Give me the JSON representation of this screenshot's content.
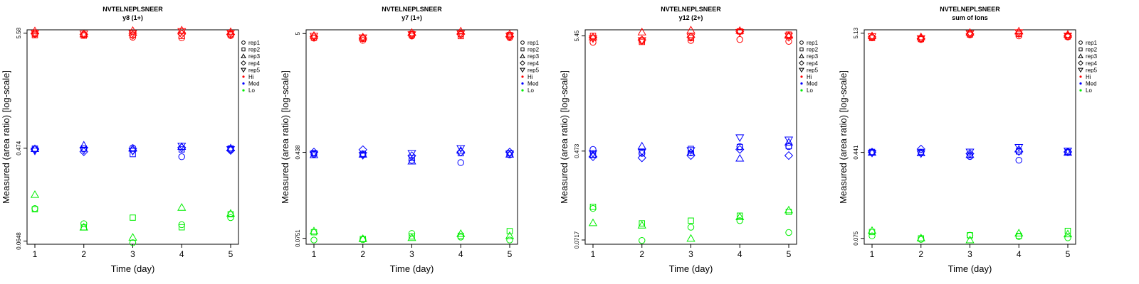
{
  "chart_data": [
    {
      "type": "scatter",
      "title": "NVTELNEPLSNEER",
      "subtitle": "y8 (1+)",
      "xlabel": "Time (day)",
      "ylabel": "Measured (area ratio) [log-scale]",
      "log_y": true,
      "x_ticks": [
        "1",
        "2",
        "3",
        "4",
        "5"
      ],
      "y_ticks": [
        {
          "value": 0.0648,
          "label": "0.0648"
        },
        {
          "value": 0.474,
          "label": "0.474"
        },
        {
          "value": 5.58,
          "label": "5.58"
        }
      ],
      "ylim": [
        0.0605,
        6.0
      ],
      "grid": false,
      "legend_position": "top-right",
      "series": [
        {
          "name": "rep1",
          "marker": "circle",
          "Hi": [
            5.45,
            5.38,
            5.12,
            5.05,
            5.3
          ],
          "Med": [
            0.465,
            0.468,
            0.478,
            0.395,
            0.46
          ],
          "Lo": [
            0.13,
            0.094,
            0.0625,
            0.092,
            0.107
          ]
        },
        {
          "name": "rep2",
          "marker": "square",
          "Hi": [
            5.35,
            5.3,
            5.4,
            5.25,
            5.45
          ],
          "Med": [
            0.47,
            0.47,
            0.418,
            0.462,
            0.472
          ],
          "Lo": [
            0.128,
            0.087,
            0.107,
            0.087,
            0.115
          ]
        },
        {
          "name": "rep3",
          "marker": "triangle-up",
          "Hi": [
            5.85,
            5.48,
            5.9,
            5.95,
            5.75
          ],
          "Med": [
            0.468,
            0.505,
            0.472,
            0.49,
            0.475
          ],
          "Lo": [
            0.175,
            0.087,
            0.07,
            0.133,
            0.117
          ]
        },
        {
          "name": "rep4",
          "marker": "diamond",
          "Hi": [
            5.55,
            5.45,
            5.35,
            5.5,
            5.45
          ],
          "Med": [
            0.463,
            0.44,
            0.452,
            0.48,
            0.452
          ]
        },
        {
          "name": "rep5",
          "marker": "triangle-down",
          "Hi": [
            5.6,
            5.5,
            5.55,
            5.8,
            5.6
          ],
          "Med": [
            0.448,
            0.455,
            0.445,
            0.498,
            0.462
          ]
        }
      ]
    },
    {
      "type": "scatter",
      "title": "NVTELNEPLSNEER",
      "subtitle": "y7 (1+)",
      "xlabel": "Time (day)",
      "ylabel": "Measured (area ratio) [log-scale]",
      "log_y": true,
      "x_ticks": [
        "1",
        "2",
        "3",
        "4",
        "5"
      ],
      "y_ticks": [
        {
          "value": 0.0751,
          "label": "0.0751"
        },
        {
          "value": 0.438,
          "label": "0.438"
        },
        {
          "value": 5,
          "label": "5"
        }
      ],
      "ylim": [
        0.0665,
        5.4
      ],
      "grid": false,
      "legend_position": "top-right",
      "series": [
        {
          "name": "rep1",
          "marker": "circle",
          "Hi": [
            4.55,
            4.35,
            4.75,
            4.9,
            4.6
          ],
          "Med": [
            0.42,
            0.415,
            0.372,
            0.355,
            0.415
          ],
          "Lo": [
            0.0725,
            0.073,
            0.083,
            0.077,
            0.0725
          ]
        },
        {
          "name": "rep2",
          "marker": "square",
          "Hi": [
            4.6,
            4.5,
            4.95,
            4.75,
            4.85
          ],
          "Med": [
            0.43,
            0.425,
            0.39,
            0.43,
            0.43
          ],
          "Lo": [
            0.085,
            0.074,
            0.078,
            0.079,
            0.087
          ]
        },
        {
          "name": "rep3",
          "marker": "triangle-up",
          "Hi": [
            4.8,
            4.65,
            5.1,
            5.25,
            4.95
          ],
          "Med": [
            0.415,
            0.42,
            0.365,
            0.455,
            0.42
          ],
          "Lo": [
            0.087,
            0.0745,
            0.076,
            0.0825,
            0.079
          ]
        },
        {
          "name": "rep4",
          "marker": "diamond",
          "Hi": [
            4.7,
            4.55,
            4.85,
            4.95,
            4.7
          ],
          "Med": [
            0.44,
            0.462,
            0.408,
            0.44,
            0.44
          ]
        },
        {
          "name": "rep5",
          "marker": "triangle-down",
          "Hi": [
            4.75,
            4.6,
            4.9,
            5.0,
            4.75
          ],
          "Med": [
            0.423,
            0.412,
            0.43,
            0.475,
            0.425
          ]
        }
      ]
    },
    {
      "type": "scatter",
      "title": "NVTELNEPLSNEER",
      "subtitle": "y12 (2+)",
      "xlabel": "Time (day)",
      "ylabel": "Measured (area ratio) [log-scale]",
      "log_y": true,
      "x_ticks": [
        "1",
        "2",
        "3",
        "4",
        "5"
      ],
      "y_ticks": [
        {
          "value": 0.0717,
          "label": "0.0717"
        },
        {
          "value": 0.473,
          "label": "0.473"
        },
        {
          "value": 5.45,
          "label": "5.45"
        }
      ],
      "ylim": [
        0.0655,
        6.2
      ],
      "grid": false,
      "legend_position": "top-right",
      "series": [
        {
          "name": "rep1",
          "marker": "circle",
          "Hi": [
            4.75,
            4.9,
            4.95,
            5.05,
            4.85
          ],
          "Med": [
            0.49,
            0.45,
            0.455,
            0.52,
            0.52
          ],
          "Lo": [
            0.14,
            0.071,
            0.094,
            0.108,
            0.084
          ]
        },
        {
          "name": "rep2",
          "marker": "square",
          "Hi": [
            5.45,
            4.8,
            5.2,
            6.0,
            5.6
          ],
          "Med": [
            0.44,
            0.46,
            0.495,
            0.515,
            0.525
          ],
          "Lo": [
            0.145,
            0.102,
            0.108,
            0.12,
            0.13
          ]
        },
        {
          "name": "rep3",
          "marker": "triangle-up",
          "Hi": [
            5.3,
            5.9,
            6.15,
            6.1,
            5.5
          ],
          "Med": [
            0.438,
            0.525,
            0.46,
            0.405,
            0.57
          ],
          "Lo": [
            0.103,
            0.098,
            0.074,
            0.117,
            0.135
          ]
        },
        {
          "name": "rep4",
          "marker": "diamond",
          "Hi": [
            5.25,
            5.0,
            5.3,
            6.0,
            5.3
          ],
          "Med": [
            0.42,
            0.41,
            0.43,
            0.49,
            0.43
          ]
        },
        {
          "name": "rep5",
          "marker": "triangle-down",
          "Hi": [
            5.15,
            4.95,
            5.35,
            5.9,
            5.45
          ],
          "Med": [
            0.45,
            0.465,
            0.48,
            0.63,
            0.6
          ]
        }
      ]
    },
    {
      "type": "scatter",
      "title": "NVTELNEPLSNEER",
      "subtitle": "sum of Ions",
      "xlabel": "Time (day)",
      "ylabel": "Measured (area ratio) [log-scale]",
      "log_y": true,
      "x_ticks": [
        "1",
        "2",
        "3",
        "4",
        "5"
      ],
      "y_ticks": [
        {
          "value": 0.075,
          "label": "0.075"
        },
        {
          "value": 0.441,
          "label": "0.441"
        },
        {
          "value": 5.13,
          "label": "5.13"
        }
      ],
      "ylim": [
        0.0665,
        5.5
      ],
      "grid": false,
      "legend_position": "top-right",
      "series": [
        {
          "name": "rep1",
          "marker": "circle",
          "Hi": [
            4.7,
            4.5,
            4.95,
            4.85,
            4.75
          ],
          "Med": [
            0.438,
            0.44,
            0.405,
            0.375,
            0.44
          ],
          "Lo": [
            0.079,
            0.0735,
            0.08,
            0.078,
            0.076
          ]
        },
        {
          "name": "rep2",
          "marker": "square",
          "Hi": [
            4.65,
            4.55,
            5.0,
            5.05,
            4.8
          ],
          "Med": [
            0.445,
            0.445,
            0.415,
            0.45,
            0.445
          ],
          "Lo": [
            0.0855,
            0.075,
            0.08,
            0.079,
            0.0875
          ]
        },
        {
          "name": "rep3",
          "marker": "triangle-up",
          "Hi": [
            4.85,
            4.75,
            5.2,
            5.35,
            5.0
          ],
          "Med": [
            0.44,
            0.435,
            0.42,
            0.47,
            0.44
          ],
          "Lo": [
            0.088,
            0.0755,
            0.0725,
            0.0835,
            0.082
          ]
        },
        {
          "name": "rep4",
          "marker": "diamond",
          "Hi": [
            4.75,
            4.6,
            5.05,
            5.1,
            4.85
          ],
          "Med": [
            0.443,
            0.472,
            0.43,
            0.45,
            0.445
          ]
        },
        {
          "name": "rep5",
          "marker": "triangle-down",
          "Hi": [
            4.8,
            4.6,
            5.1,
            5.2,
            4.85
          ],
          "Med": [
            0.435,
            0.43,
            0.445,
            0.49,
            0.455
          ]
        }
      ]
    }
  ],
  "legend": {
    "shapes": [
      {
        "label": "rep1",
        "marker": "circle"
      },
      {
        "label": "rep2",
        "marker": "square"
      },
      {
        "label": "rep3",
        "marker": "triangle-up"
      },
      {
        "label": "rep4",
        "marker": "diamond"
      },
      {
        "label": "rep5",
        "marker": "triangle-down"
      }
    ],
    "levels": [
      {
        "label": "Hi",
        "color": "#ff0000"
      },
      {
        "label": "Med",
        "color": "#0000ff"
      },
      {
        "label": "Lo",
        "color": "#00ee00"
      }
    ]
  }
}
